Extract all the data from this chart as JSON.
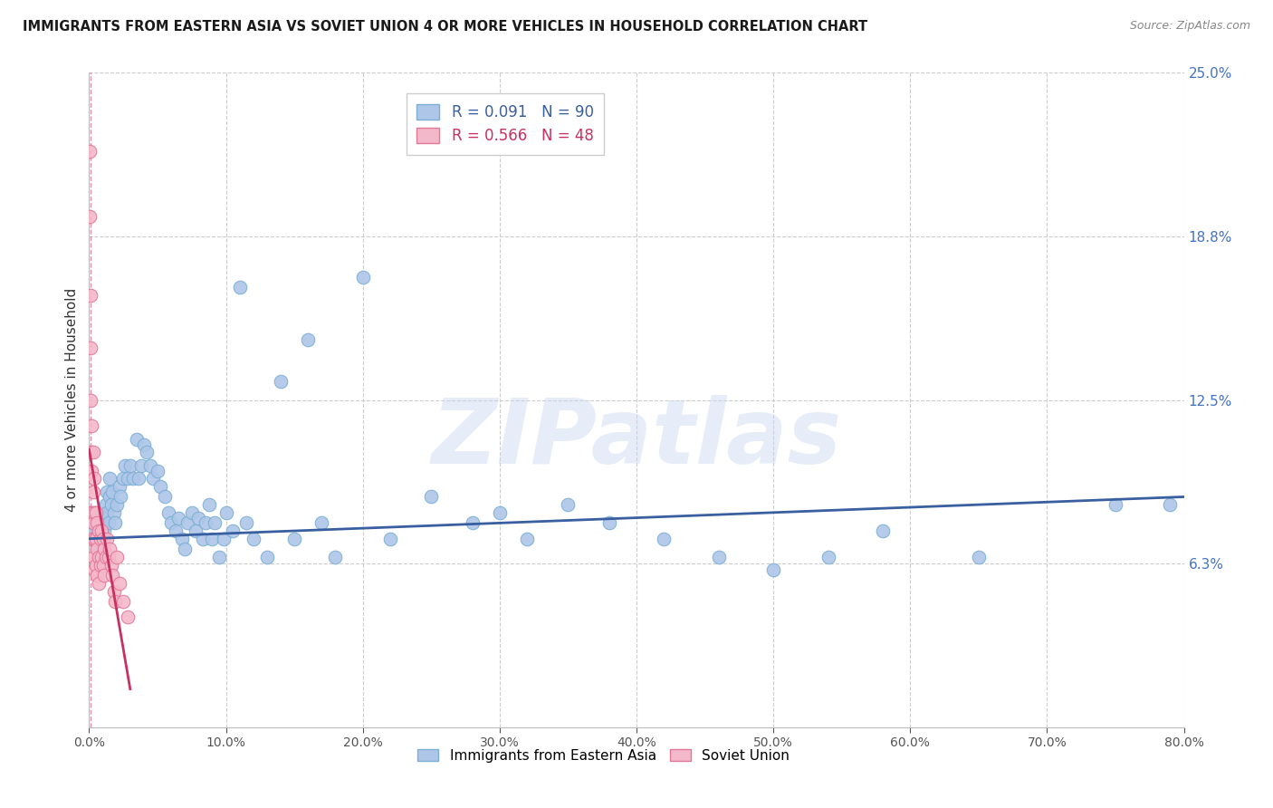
{
  "title": "IMMIGRANTS FROM EASTERN ASIA VS SOVIET UNION 4 OR MORE VEHICLES IN HOUSEHOLD CORRELATION CHART",
  "source": "Source: ZipAtlas.com",
  "ylabel": "4 or more Vehicles in Household",
  "xmin": 0.0,
  "xmax": 0.8,
  "ymin": 0.0,
  "ymax": 0.25,
  "blue_color": "#aec6e8",
  "blue_edge_color": "#7bafd4",
  "pink_color": "#f4b8cb",
  "pink_edge_color": "#e07898",
  "trend_blue": "#3a5fa0",
  "trend_pink": "#c83060",
  "R_blue": 0.091,
  "N_blue": 90,
  "R_pink": 0.566,
  "N_pink": 48,
  "watermark_text": "ZIPatlas",
  "blue_scatter_x": [
    0.002,
    0.003,
    0.004,
    0.004,
    0.005,
    0.006,
    0.006,
    0.007,
    0.007,
    0.008,
    0.008,
    0.009,
    0.009,
    0.01,
    0.01,
    0.011,
    0.011,
    0.012,
    0.012,
    0.013,
    0.013,
    0.014,
    0.015,
    0.015,
    0.016,
    0.017,
    0.018,
    0.019,
    0.02,
    0.022,
    0.023,
    0.025,
    0.026,
    0.028,
    0.03,
    0.032,
    0.035,
    0.036,
    0.038,
    0.04,
    0.042,
    0.045,
    0.047,
    0.05,
    0.052,
    0.055,
    0.058,
    0.06,
    0.063,
    0.065,
    0.068,
    0.07,
    0.072,
    0.075,
    0.078,
    0.08,
    0.083,
    0.085,
    0.088,
    0.09,
    0.092,
    0.095,
    0.098,
    0.1,
    0.105,
    0.11,
    0.115,
    0.12,
    0.13,
    0.14,
    0.15,
    0.16,
    0.17,
    0.18,
    0.2,
    0.22,
    0.25,
    0.28,
    0.3,
    0.32,
    0.35,
    0.38,
    0.42,
    0.46,
    0.5,
    0.54,
    0.58,
    0.65,
    0.75,
    0.79
  ],
  "blue_scatter_y": [
    0.078,
    0.072,
    0.082,
    0.075,
    0.08,
    0.068,
    0.073,
    0.076,
    0.082,
    0.07,
    0.078,
    0.074,
    0.08,
    0.072,
    0.078,
    0.068,
    0.075,
    0.08,
    0.085,
    0.09,
    0.082,
    0.078,
    0.088,
    0.095,
    0.085,
    0.09,
    0.082,
    0.078,
    0.085,
    0.092,
    0.088,
    0.095,
    0.1,
    0.095,
    0.1,
    0.095,
    0.11,
    0.095,
    0.1,
    0.108,
    0.105,
    0.1,
    0.095,
    0.098,
    0.092,
    0.088,
    0.082,
    0.078,
    0.075,
    0.08,
    0.072,
    0.068,
    0.078,
    0.082,
    0.075,
    0.08,
    0.072,
    0.078,
    0.085,
    0.072,
    0.078,
    0.065,
    0.072,
    0.082,
    0.075,
    0.168,
    0.078,
    0.072,
    0.065,
    0.132,
    0.072,
    0.148,
    0.078,
    0.065,
    0.172,
    0.072,
    0.088,
    0.078,
    0.082,
    0.072,
    0.085,
    0.078,
    0.072,
    0.065,
    0.06,
    0.065,
    0.075,
    0.065,
    0.085,
    0.085
  ],
  "pink_scatter_x": [
    0.0005,
    0.0005,
    0.0008,
    0.001,
    0.001,
    0.001,
    0.001,
    0.002,
    0.002,
    0.002,
    0.002,
    0.003,
    0.003,
    0.003,
    0.003,
    0.004,
    0.004,
    0.004,
    0.004,
    0.005,
    0.005,
    0.005,
    0.006,
    0.006,
    0.006,
    0.007,
    0.007,
    0.007,
    0.008,
    0.008,
    0.009,
    0.009,
    0.01,
    0.01,
    0.011,
    0.011,
    0.012,
    0.013,
    0.014,
    0.015,
    0.016,
    0.017,
    0.018,
    0.019,
    0.02,
    0.022,
    0.025,
    0.028
  ],
  "pink_scatter_y": [
    0.22,
    0.195,
    0.165,
    0.145,
    0.125,
    0.105,
    0.082,
    0.115,
    0.098,
    0.082,
    0.072,
    0.105,
    0.09,
    0.078,
    0.065,
    0.095,
    0.082,
    0.072,
    0.06,
    0.082,
    0.072,
    0.062,
    0.078,
    0.068,
    0.058,
    0.075,
    0.065,
    0.055,
    0.072,
    0.062,
    0.075,
    0.065,
    0.072,
    0.062,
    0.068,
    0.058,
    0.065,
    0.072,
    0.065,
    0.068,
    0.062,
    0.058,
    0.052,
    0.048,
    0.065,
    0.055,
    0.048,
    0.042
  ]
}
